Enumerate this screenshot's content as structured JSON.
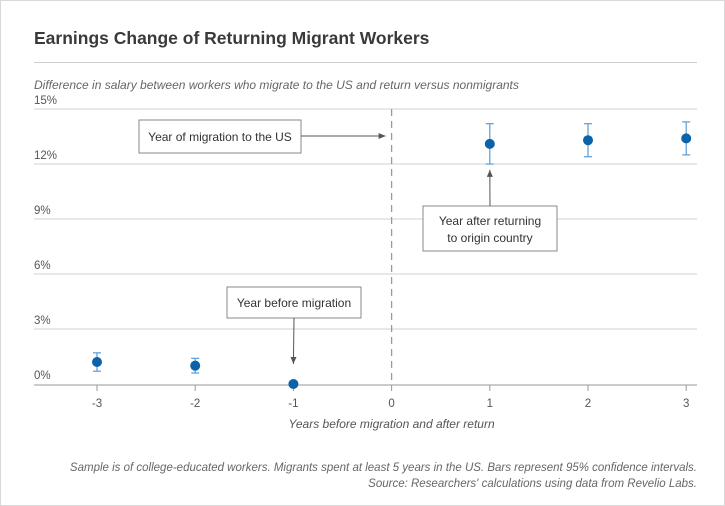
{
  "title": "Earnings Change of Returning Migrant Workers",
  "subtitle": "Difference in salary between workers who migrate to the US and return versus nonmigrants",
  "footnotes": [
    "Sample is of college-educated workers. Migrants spent at least 5 years in the US. Bars represent 95% confidence intervals.",
    "Source: Researchers' calculations using data from Revelio Labs."
  ],
  "colors": {
    "point": "#0c62a8",
    "error_bar": "#5a9bd5",
    "grid": "#d0d0d0",
    "axis": "#999999",
    "divider": "#999999"
  },
  "chart_data": {
    "type": "scatter",
    "title": "Earnings Change of Returning Migrant Workers",
    "xlabel": "Years before migration and after return",
    "ylabel": "",
    "x_ticks": [
      "-3",
      "-2",
      "-1",
      "0",
      "1",
      "2",
      "3"
    ],
    "y_ticks": [
      "0%",
      "3%",
      "6%",
      "9%",
      "12%",
      "15%"
    ],
    "xlim": [
      -3.3,
      3.3
    ],
    "ylim": [
      -0.5,
      15
    ],
    "grid": "horizontal",
    "points": [
      {
        "x": -3,
        "y": 1.2,
        "lower": 0.7,
        "upper": 1.7
      },
      {
        "x": -2,
        "y": 1.0,
        "lower": 0.6,
        "upper": 1.4
      },
      {
        "x": -1,
        "y": 0.0,
        "lower": 0.0,
        "upper": 0.0
      },
      {
        "x": 1,
        "y": 13.1,
        "lower": 12.0,
        "upper": 14.2
      },
      {
        "x": 2,
        "y": 13.3,
        "lower": 12.4,
        "upper": 14.2
      },
      {
        "x": 3,
        "y": 13.4,
        "lower": 12.5,
        "upper": 14.3
      }
    ],
    "divider_x": 0,
    "annotations": [
      {
        "lines": [
          "Year of migration to the US"
        ],
        "target_x": 0,
        "target_y": 13.5
      },
      {
        "lines": [
          "Year before migration"
        ],
        "target_x": -1,
        "target_y": 0.0
      },
      {
        "lines": [
          "Year after returning",
          "to origin country"
        ],
        "target_x": 1,
        "target_y": 13.1
      }
    ]
  }
}
